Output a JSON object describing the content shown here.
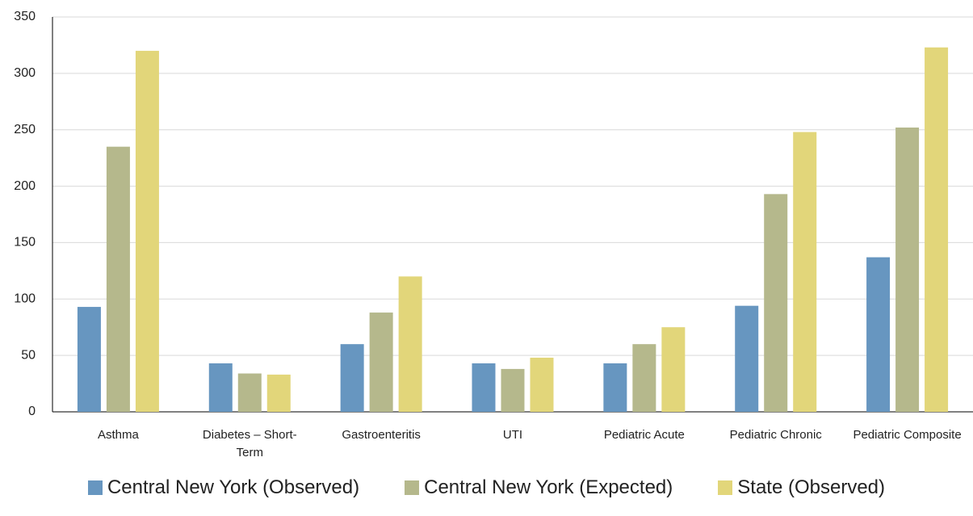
{
  "chart_data": {
    "type": "bar",
    "categories": [
      "Asthma",
      "Diabetes – Short-Term",
      "Gastroenteritis",
      "UTI",
      "Pediatric Acute",
      "Pediatric Chronic",
      "Pediatric Composite"
    ],
    "series": [
      {
        "name": "Central New York (Observed)",
        "color": "#6796c0",
        "values": [
          93,
          43,
          60,
          43,
          43,
          94,
          137
        ]
      },
      {
        "name": "Central New York (Expected)",
        "color": "#b5b88c",
        "values": [
          235,
          34,
          88,
          38,
          60,
          193,
          252
        ]
      },
      {
        "name": "State (Observed)",
        "color": "#e2d67a",
        "values": [
          320,
          33,
          120,
          48,
          75,
          248,
          323
        ]
      }
    ],
    "ylim": [
      0,
      350
    ],
    "yticks": [
      0,
      50,
      100,
      150,
      200,
      250,
      300,
      350
    ],
    "grid": true,
    "legend": "bottom"
  }
}
